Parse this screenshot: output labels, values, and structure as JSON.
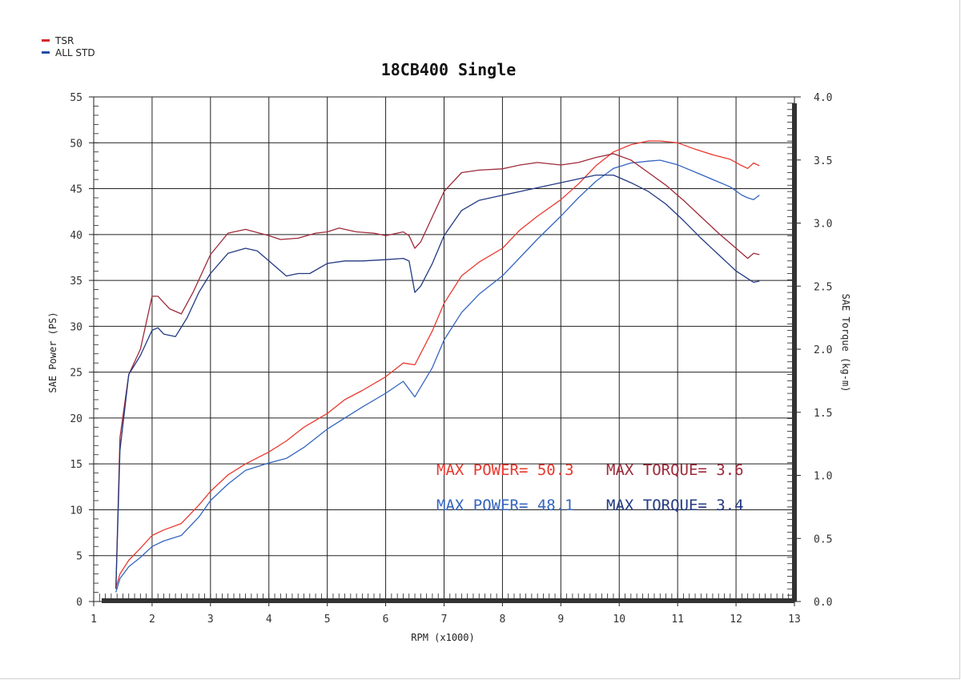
{
  "chart_data": {
    "type": "line",
    "title": "18CB400 Single",
    "xlabel": "RPM (x1000)",
    "ylabel": "SAE Power (PS)",
    "y2label": "SAE Torque (kg-m)",
    "xlim": [
      1,
      13
    ],
    "ylim": [
      0,
      55
    ],
    "y2lim": [
      0,
      4
    ],
    "x_ticks": [
      1,
      2,
      3,
      4,
      5,
      6,
      7,
      8,
      9,
      10,
      11,
      12,
      13
    ],
    "y_ticks": [
      0,
      5,
      10,
      15,
      20,
      25,
      30,
      35,
      40,
      45,
      50,
      55
    ],
    "y2_ticks": [
      "0.0",
      "0.5",
      "1.0",
      "1.5",
      "2.0",
      "2.5",
      "3.0",
      "3.5",
      "4.0"
    ],
    "grid": true,
    "legend": {
      "placement": "top-left",
      "entries": [
        {
          "name": "TSR",
          "color": "#d42a2a"
        },
        {
          "name": "ALL STD",
          "color": "#1f4ea8"
        }
      ]
    },
    "series": [
      {
        "name": "TSR Power",
        "legend": "TSR",
        "axis": "left",
        "color": "#e8392f",
        "x": [
          1.38,
          1.45,
          1.6,
          1.8,
          2.0,
          2.2,
          2.5,
          2.8,
          3.0,
          3.3,
          3.6,
          4.0,
          4.3,
          4.6,
          5.0,
          5.3,
          5.6,
          6.0,
          6.3,
          6.5,
          6.8,
          7.0,
          7.3,
          7.6,
          8.0,
          8.3,
          8.6,
          9.0,
          9.3,
          9.6,
          9.9,
          10.2,
          10.5,
          10.7,
          11.0,
          11.3,
          11.6,
          11.9,
          12.1,
          12.2,
          12.3,
          12.4
        ],
        "y": [
          1.5,
          3.0,
          4.5,
          5.8,
          7.2,
          7.8,
          8.5,
          10.5,
          12.0,
          13.8,
          15.0,
          16.3,
          17.5,
          19.0,
          20.5,
          22.0,
          23.0,
          24.5,
          26.0,
          25.8,
          29.5,
          32.5,
          35.5,
          37.0,
          38.5,
          40.5,
          42.0,
          43.8,
          45.5,
          47.5,
          49.0,
          49.8,
          50.2,
          50.2,
          50.0,
          49.3,
          48.7,
          48.2,
          47.5,
          47.2,
          47.8,
          47.5
        ]
      },
      {
        "name": "STD Power",
        "legend": "ALL STD",
        "axis": "left",
        "color": "#3565bf",
        "x": [
          1.38,
          1.45,
          1.6,
          1.8,
          2.0,
          2.2,
          2.5,
          2.8,
          3.0,
          3.3,
          3.6,
          4.0,
          4.3,
          4.6,
          5.0,
          5.3,
          5.6,
          6.0,
          6.3,
          6.5,
          6.8,
          7.0,
          7.3,
          7.6,
          8.0,
          8.3,
          8.6,
          9.0,
          9.3,
          9.6,
          9.9,
          10.2,
          10.5,
          10.7,
          11.0,
          11.3,
          11.6,
          11.9,
          12.1,
          12.2,
          12.3,
          12.4
        ],
        "y": [
          1.0,
          2.5,
          3.8,
          4.8,
          6.0,
          6.6,
          7.2,
          9.2,
          11.0,
          12.8,
          14.3,
          15.1,
          15.6,
          16.8,
          18.8,
          20.0,
          21.2,
          22.7,
          24.0,
          22.3,
          25.5,
          28.5,
          31.5,
          33.5,
          35.5,
          37.5,
          39.5,
          42.0,
          44.0,
          45.8,
          47.2,
          47.8,
          48.0,
          48.1,
          47.6,
          46.8,
          46.0,
          45.2,
          44.3,
          44.0,
          43.8,
          44.3
        ]
      },
      {
        "name": "TSR Torque",
        "legend": "TSR",
        "axis": "right",
        "color": "#9e2a3a",
        "x": [
          1.38,
          1.45,
          1.6,
          1.8,
          2.0,
          2.1,
          2.3,
          2.5,
          2.7,
          3.0,
          3.3,
          3.6,
          4.0,
          4.2,
          4.5,
          4.8,
          5.0,
          5.2,
          5.5,
          5.8,
          6.0,
          6.3,
          6.4,
          6.5,
          6.6,
          6.8,
          7.0,
          7.3,
          7.6,
          8.0,
          8.3,
          8.6,
          9.0,
          9.3,
          9.6,
          9.9,
          10.2,
          10.5,
          10.8,
          11.1,
          11.4,
          11.7,
          12.0,
          12.2,
          12.3,
          12.4
        ],
        "y": [
          0.1,
          1.3,
          1.8,
          2.0,
          2.42,
          2.42,
          2.32,
          2.28,
          2.45,
          2.75,
          2.92,
          2.95,
          2.9,
          2.87,
          2.88,
          2.92,
          2.93,
          2.96,
          2.93,
          2.92,
          2.9,
          2.93,
          2.9,
          2.8,
          2.85,
          3.05,
          3.25,
          3.4,
          3.42,
          3.43,
          3.46,
          3.48,
          3.46,
          3.48,
          3.52,
          3.55,
          3.5,
          3.4,
          3.3,
          3.18,
          3.05,
          2.92,
          2.8,
          2.72,
          2.76,
          2.75
        ]
      },
      {
        "name": "STD Torque",
        "legend": "ALL STD",
        "axis": "right",
        "color": "#223a82",
        "x": [
          1.38,
          1.45,
          1.6,
          1.8,
          2.0,
          2.1,
          2.2,
          2.4,
          2.6,
          2.8,
          3.0,
          3.3,
          3.6,
          3.8,
          4.0,
          4.3,
          4.5,
          4.7,
          5.0,
          5.3,
          5.6,
          6.0,
          6.3,
          6.4,
          6.5,
          6.6,
          6.8,
          7.0,
          7.3,
          7.6,
          8.0,
          8.3,
          8.6,
          9.0,
          9.3,
          9.6,
          9.9,
          10.2,
          10.5,
          10.8,
          11.1,
          11.4,
          11.7,
          12.0,
          12.2,
          12.3,
          12.4
        ],
        "y": [
          0.1,
          1.2,
          1.8,
          1.95,
          2.15,
          2.17,
          2.12,
          2.1,
          2.25,
          2.45,
          2.6,
          2.76,
          2.8,
          2.78,
          2.7,
          2.58,
          2.6,
          2.6,
          2.68,
          2.7,
          2.7,
          2.71,
          2.72,
          2.7,
          2.45,
          2.5,
          2.68,
          2.9,
          3.1,
          3.18,
          3.22,
          3.25,
          3.28,
          3.32,
          3.35,
          3.38,
          3.38,
          3.32,
          3.25,
          3.15,
          3.02,
          2.88,
          2.75,
          2.62,
          2.56,
          2.53,
          2.54
        ]
      }
    ],
    "annotations": [
      {
        "label": "MAX POWER=",
        "value": "50.3",
        "color": "#e8392f"
      },
      {
        "label": "MAX TORQUE=",
        "value": "3.6",
        "color": "#9e2a3a"
      },
      {
        "label": "MAX POWER=",
        "value": "48.1",
        "color": "#3565bf"
      },
      {
        "label": "MAX TORQUE=",
        "value": "3.4",
        "color": "#223a82"
      }
    ]
  }
}
